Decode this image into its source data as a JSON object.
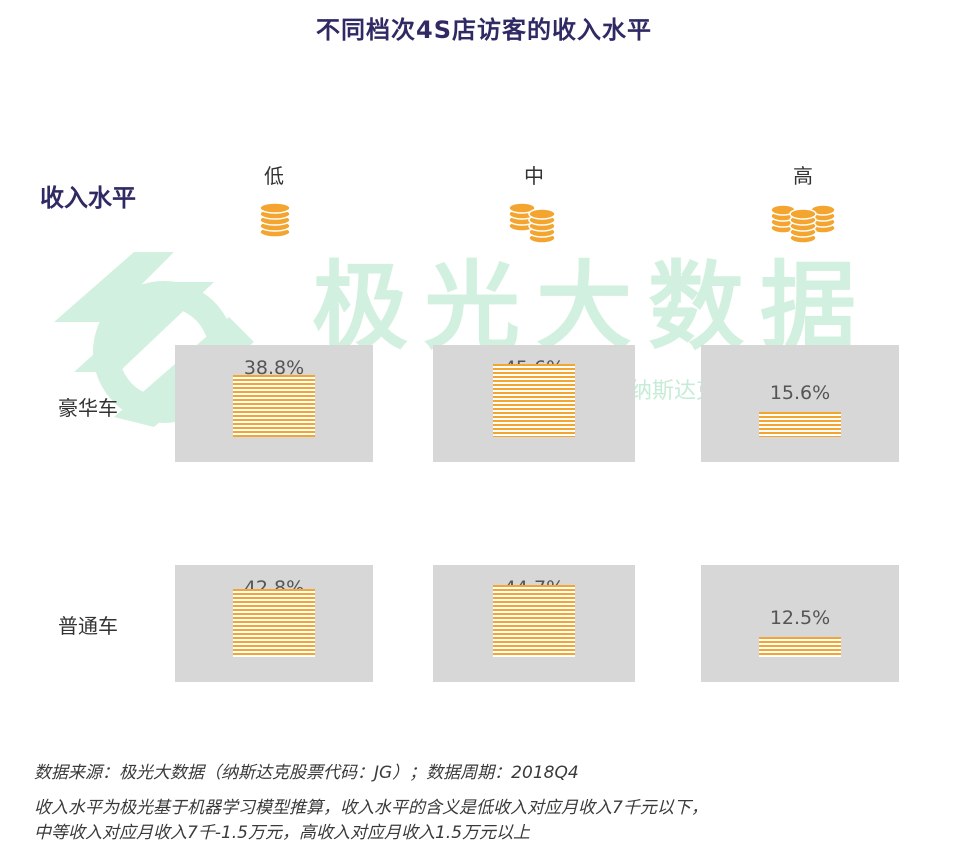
{
  "title": "不同档次4S店访客的收入水平",
  "row_axis_title": "收入水平",
  "columns": [
    {
      "label": "低",
      "icon": "single-coin-stack-icon"
    },
    {
      "label": "中",
      "icon": "double-coin-stack-icon"
    },
    {
      "label": "高",
      "icon": "triple-coin-stack-icon"
    }
  ],
  "rows": [
    {
      "label": "豪华车"
    },
    {
      "label": "普通车"
    }
  ],
  "watermark": {
    "brand": "极光大数据",
    "subtext": "纳斯达克股票代码：JG"
  },
  "chart_data": {
    "type": "table",
    "title": "不同档次4S店访客的收入水平",
    "row_header": "收入水平",
    "columns": [
      "低",
      "中",
      "高"
    ],
    "rows": [
      "豪华车",
      "普通车"
    ],
    "values": [
      [
        38.8,
        45.6,
        15.6
      ],
      [
        42.8,
        44.7,
        12.5
      ]
    ],
    "labels": [
      [
        "38.8%",
        "45.6%",
        "15.6%"
      ],
      [
        "42.8%",
        "44.7%",
        "12.5%"
      ]
    ],
    "unit": "%"
  },
  "footer": {
    "source": "数据来源：极光大数据（纳斯达克股票代码：JG）；数据周期：2018Q4",
    "note_line1": "收入水平为极光基于机器学习模型推算，收入水平的含义是低收入对应月收入7千元以下，",
    "note_line2": "中等收入对应月收入7千-1.5万元，高收入对应月收入1.5万元以上"
  },
  "colors": {
    "title": "#2f2a63",
    "cell_background": "#d7d7d7",
    "bar": "#f3a52f",
    "coin": "#f3a52f",
    "watermark": "#7fd6a6"
  }
}
